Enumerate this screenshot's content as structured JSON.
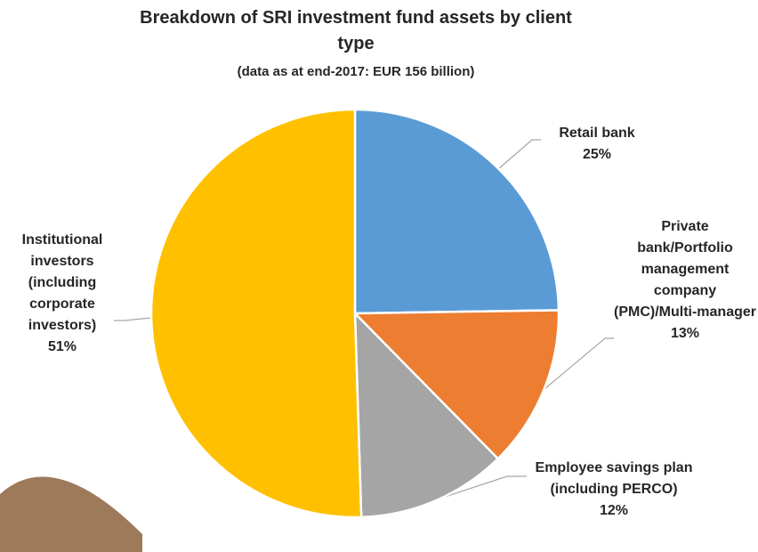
{
  "chart_data": {
    "type": "pie",
    "title": "Breakdown of SRI investment fund assets by client type",
    "subtitle": "(data as at end-2017: EUR 156 billion)",
    "categories": [
      "Retail bank",
      "Private bank/Portfolio management company (PMC)/Multi-manager",
      "Employee savings plan (including PERCO)",
      "Institutional investors (including corporate investors)"
    ],
    "values": [
      25,
      13,
      12,
      51
    ],
    "value_labels": [
      "25%",
      "13%",
      "12%",
      "51%"
    ],
    "colors": [
      "#5b9bd5",
      "#ed7d31",
      "#a5a5a5",
      "#ffc000"
    ]
  }
}
